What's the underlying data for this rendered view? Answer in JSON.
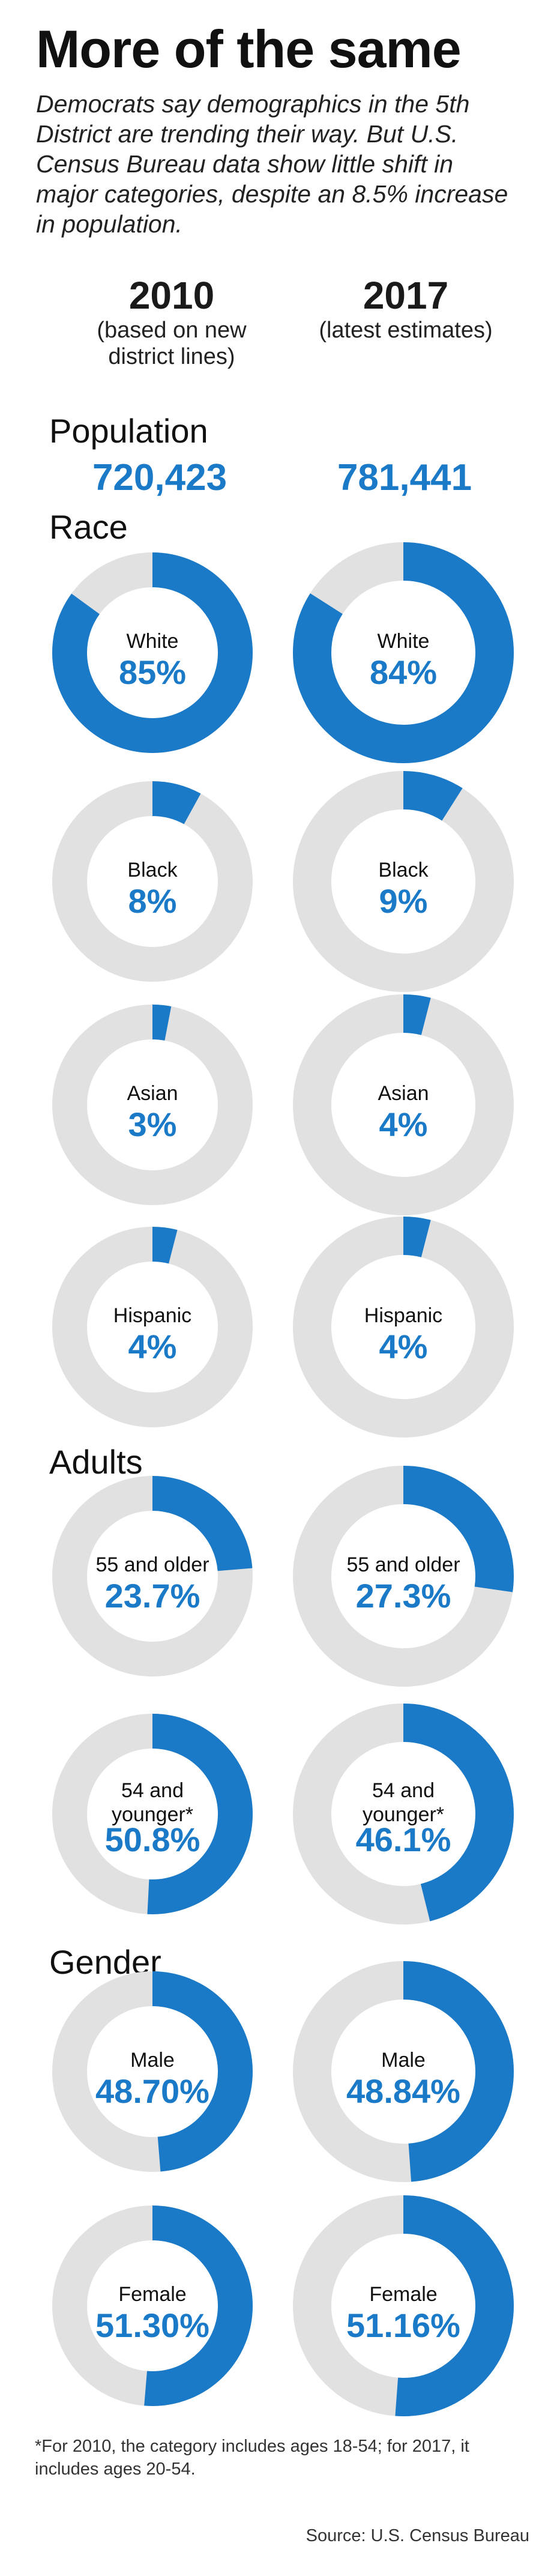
{
  "title": "More of the same",
  "subtitle": "Democrats say demographics in the 5th District are trending their way. But U.S. Census Bureau data show little shift in major categories, despite an 8.5% increase in population.",
  "columns": [
    {
      "year": "2010",
      "note": "(based on new district lines)"
    },
    {
      "year": "2017",
      "note": "(latest estimates)"
    }
  ],
  "population": {
    "label": "Population",
    "values": [
      "720,423",
      "781,441"
    ]
  },
  "sections": {
    "race": "Race",
    "adults": "Adults",
    "gender": "Gender"
  },
  "colors": {
    "filled": "#1a7ac7",
    "track": "#e1e1e1",
    "value_text": "#1a7ac7"
  },
  "chart_data": {
    "type": "donut",
    "series": [
      {
        "name": "2010",
        "rows": [
          {
            "section": "Race",
            "label": "White",
            "value": 85,
            "display": "85%"
          },
          {
            "section": "Race",
            "label": "Black",
            "value": 8,
            "display": "8%"
          },
          {
            "section": "Race",
            "label": "Asian",
            "value": 3,
            "display": "3%"
          },
          {
            "section": "Race",
            "label": "Hispanic",
            "value": 4,
            "display": "4%"
          },
          {
            "section": "Adults",
            "label": "55 and older",
            "value": 23.7,
            "display": "23.7%"
          },
          {
            "section": "Adults",
            "label": "54 and younger*",
            "value": 50.8,
            "display": "50.8%"
          },
          {
            "section": "Gender",
            "label": "Male",
            "value": 48.7,
            "display": "48.70%"
          },
          {
            "section": "Gender",
            "label": "Female",
            "value": 51.3,
            "display": "51.30%"
          }
        ]
      },
      {
        "name": "2017",
        "rows": [
          {
            "section": "Race",
            "label": "White",
            "value": 84,
            "display": "84%"
          },
          {
            "section": "Race",
            "label": "Black",
            "value": 9,
            "display": "9%"
          },
          {
            "section": "Race",
            "label": "Asian",
            "value": 4,
            "display": "4%"
          },
          {
            "section": "Race",
            "label": "Hispanic",
            "value": 4,
            "display": "4%"
          },
          {
            "section": "Adults",
            "label": "55 and older",
            "value": 27.3,
            "display": "27.3%"
          },
          {
            "section": "Adults",
            "label": "54 and younger*",
            "value": 46.1,
            "display": "46.1%"
          },
          {
            "section": "Gender",
            "label": "Male",
            "value": 48.84,
            "display": "48.84%"
          },
          {
            "section": "Gender",
            "label": "Female",
            "value": 51.16,
            "display": "51.16%"
          }
        ]
      }
    ]
  },
  "footnote": "*For 2010, the category includes ages 18-54; for 2017, it includes ages 20-54.",
  "source": "Source: U.S. Census Bureau"
}
